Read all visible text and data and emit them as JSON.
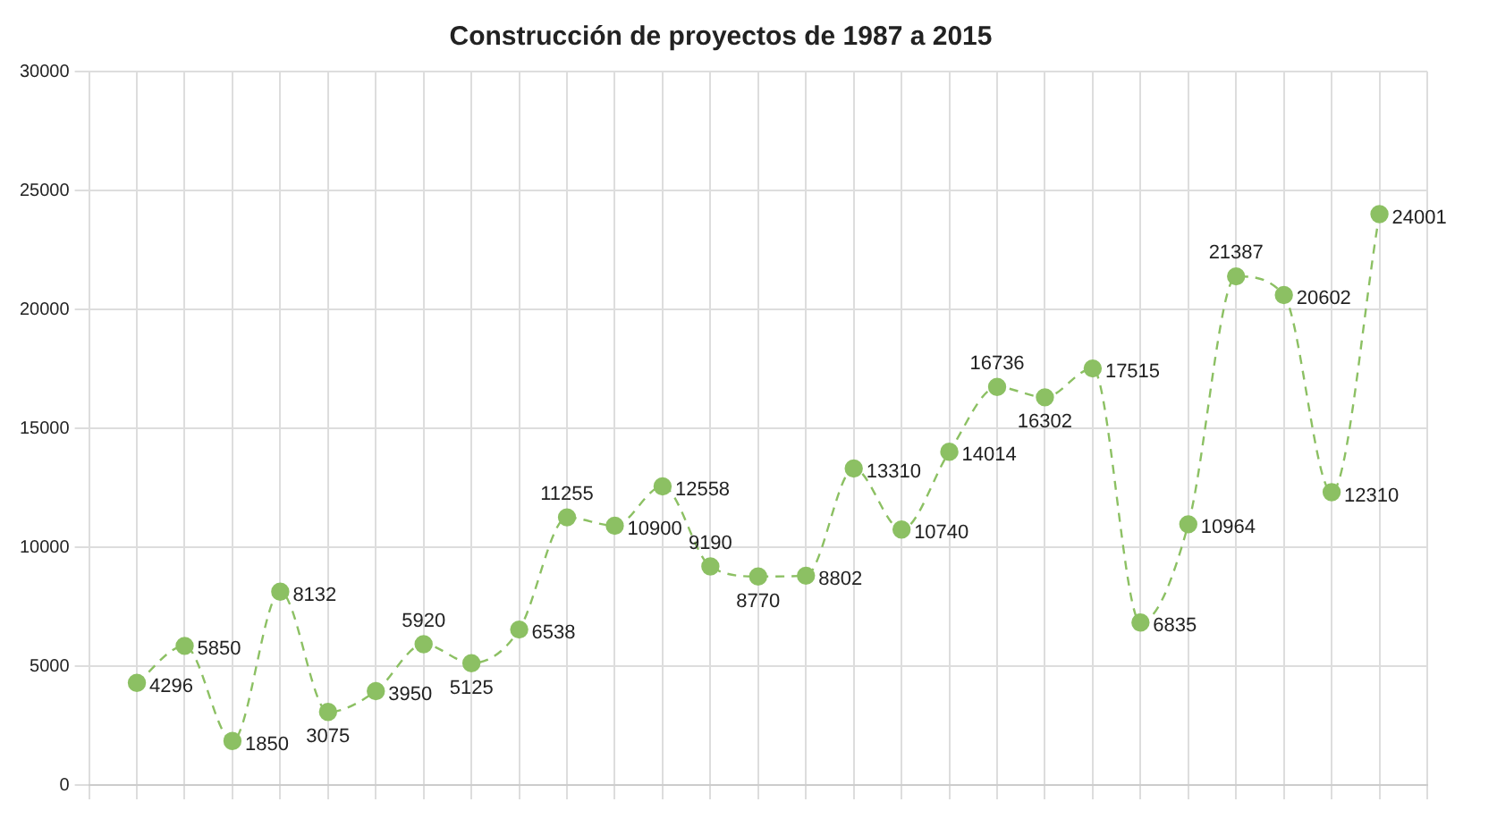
{
  "chart_data": {
    "type": "line",
    "title": "Construcción de proyectos de 1987 a 2015",
    "categories": [
      null,
      null,
      null,
      null,
      null,
      null,
      null,
      null,
      null,
      null,
      null,
      null,
      null,
      null,
      null,
      null,
      null,
      null,
      null,
      null,
      null,
      null,
      null,
      null,
      null,
      null,
      null,
      null,
      null
    ],
    "series": [
      {
        "color": "#8cc063",
        "values": [
          null,
          4296,
          5850,
          1850,
          8132,
          3075,
          3950,
          5920,
          5125,
          6538,
          11255,
          10900,
          12558,
          9190,
          8770,
          8802,
          13310,
          10740,
          14014,
          16736,
          16302,
          17515,
          6835,
          10964,
          21387,
          20602,
          12310,
          24001,
          null
        ]
      }
    ],
    "ylim": [
      0,
      30000
    ],
    "yticks": [
      0,
      5000,
      10000,
      15000,
      20000,
      25000,
      30000
    ],
    "grid": true,
    "legend": false,
    "marker": "circle",
    "line_style": "dashed",
    "data_labels": true
  }
}
